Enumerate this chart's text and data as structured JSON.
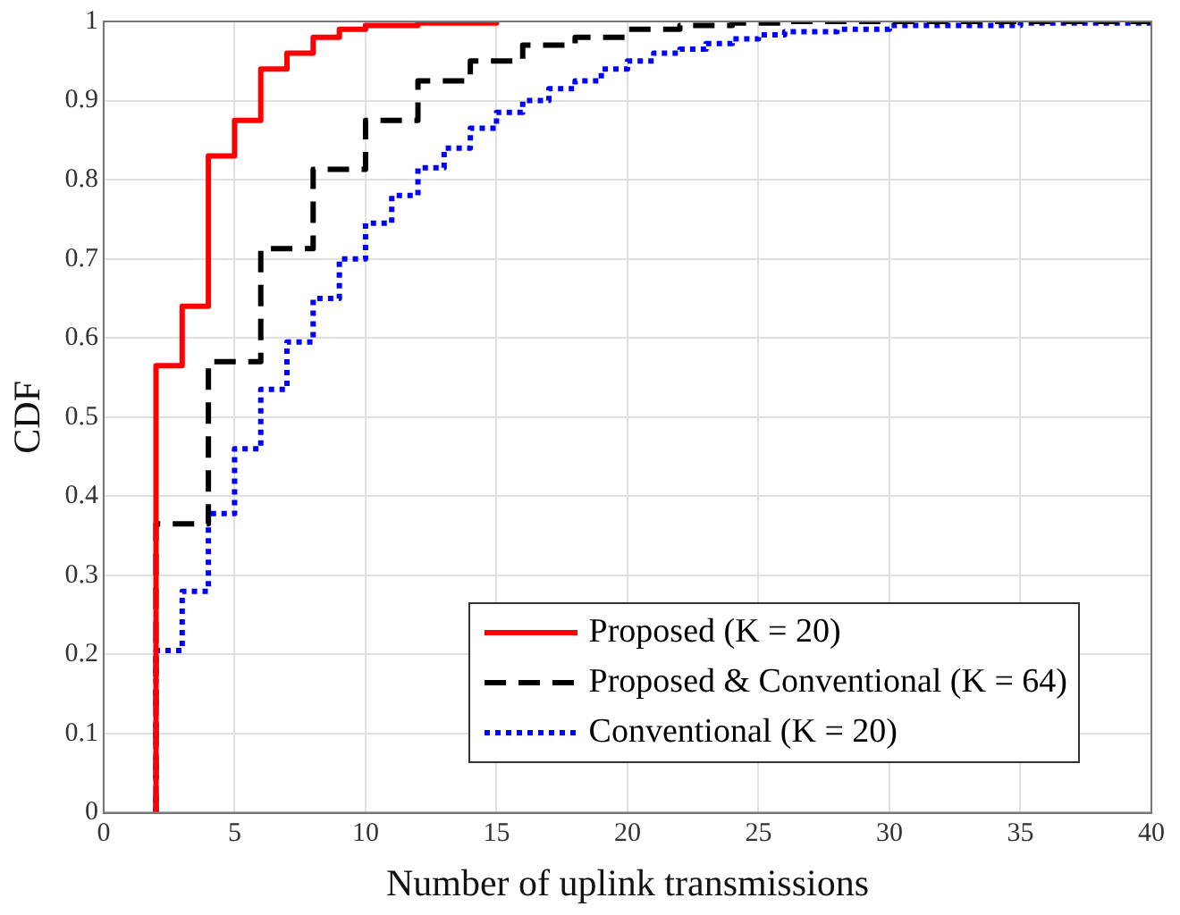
{
  "chart_data": {
    "type": "step",
    "xlabel": "Number of uplink transmissions",
    "ylabel": "CDF",
    "xlim": [
      0,
      40
    ],
    "xticks": [
      0,
      5,
      10,
      15,
      20,
      25,
      30,
      35,
      40
    ],
    "ylim": [
      0,
      1
    ],
    "yticks": [
      0,
      0.1,
      0.2,
      0.3,
      0.4,
      0.5,
      0.6,
      0.7,
      0.8,
      0.9,
      1
    ],
    "grid": true,
    "legend": "bottom right",
    "marker": "none",
    "series": [
      {
        "name": "Proposed (K = 20)",
        "color": "#ff0000",
        "line_style": "solid",
        "x": [
          2,
          2,
          3,
          4,
          5,
          6,
          7,
          8,
          9,
          10,
          12,
          15
        ],
        "values": [
          0,
          0.565,
          0.64,
          0.83,
          0.875,
          0.94,
          0.96,
          0.98,
          0.99,
          0.995,
          0.998,
          1
        ]
      },
      {
        "name": "Proposed & Conventional (K = 64)",
        "color": "#000000",
        "line_style": "dashed",
        "x": [
          2,
          2,
          4,
          6,
          8,
          10,
          12,
          14,
          16,
          18,
          20,
          22,
          24,
          26,
          40
        ],
        "values": [
          0,
          0.365,
          0.57,
          0.713,
          0.813,
          0.875,
          0.925,
          0.95,
          0.97,
          0.98,
          0.99,
          0.995,
          0.998,
          1,
          1
        ]
      },
      {
        "name": "Conventional (K = 20)",
        "color": "#0000ff",
        "line_style": "dotted",
        "x": [
          2,
          2,
          3,
          4,
          5,
          6,
          7,
          8,
          9,
          10,
          11,
          12,
          13,
          14,
          15,
          16,
          17,
          18,
          19,
          20,
          21,
          22,
          23,
          24,
          25,
          26,
          28,
          30,
          35,
          40
        ],
        "values": [
          0,
          0.205,
          0.28,
          0.378,
          0.46,
          0.535,
          0.595,
          0.65,
          0.7,
          0.745,
          0.78,
          0.815,
          0.84,
          0.865,
          0.885,
          0.9,
          0.915,
          0.925,
          0.94,
          0.95,
          0.96,
          0.965,
          0.972,
          0.978,
          0.983,
          0.987,
          0.99,
          0.995,
          0.998,
          1
        ]
      }
    ]
  }
}
